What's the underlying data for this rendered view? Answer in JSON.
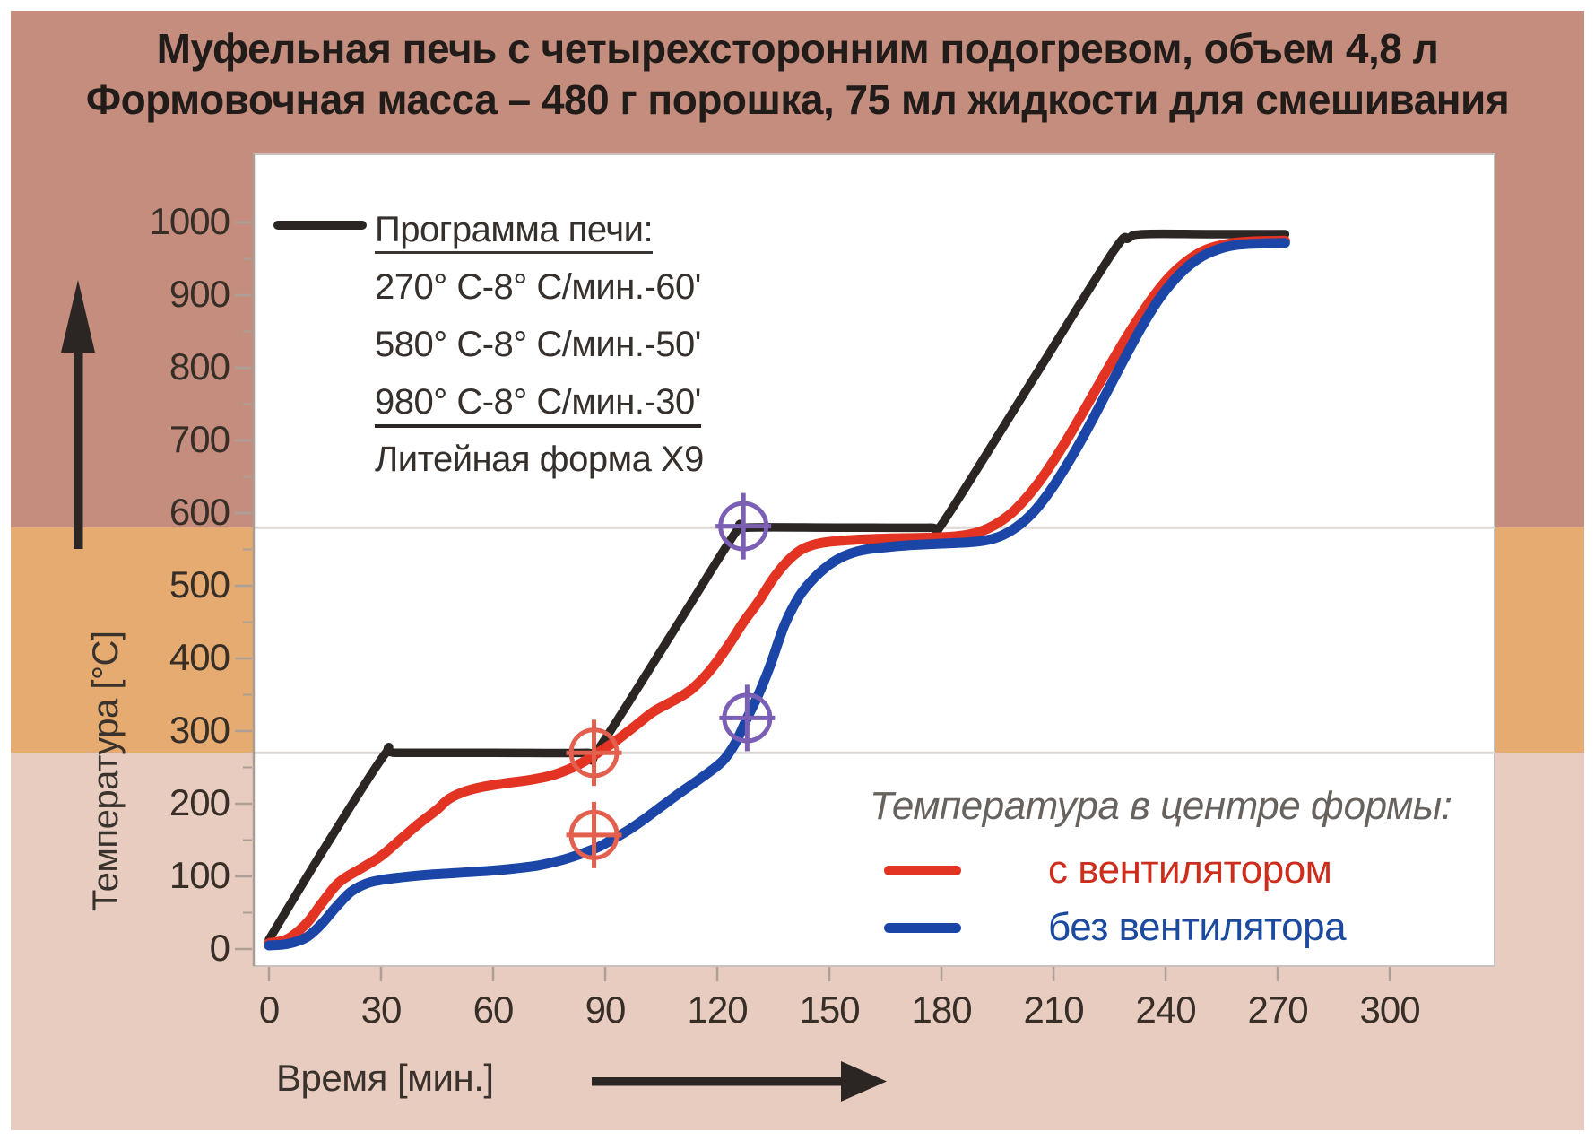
{
  "title": {
    "line1": "Муфельная печь с четырехсторонним подогревом, объем 4,8 л",
    "line2": "Формовочная масса – 480 г порошка, 75 мл жидкости для смешивания"
  },
  "legend_program": {
    "title": "Программа печи:",
    "steps": [
      "270° C-8° C/мин.-60'",
      "580° C-8° C/мин.-50'",
      "980° C-8° C/мин.-30'"
    ],
    "footer": "Литейная форма X9"
  },
  "legend_center": {
    "title": "Температура в центре формы:",
    "items": [
      {
        "label": "с вентилятором",
        "color": "#cd2d1c",
        "swatch": "#e23323"
      },
      {
        "label": "без вентилятора",
        "color": "#1c4a9e",
        "swatch": "#1b46a8"
      }
    ]
  },
  "x_axis": {
    "label": "Время [мин.]"
  },
  "y_axis": {
    "label": "Температура [°C]"
  },
  "colors": {
    "band_top": "#c48d7d",
    "band_middle": "#e5ab70",
    "band_bottom": "#e8ccbf",
    "plot_background": "#ffffff",
    "gridline": "#dbd8d5",
    "tick": "#ab9f97",
    "frame": "#c9c2bc",
    "marker_red": "#e4604e",
    "marker_purple": "#7a5fb5",
    "arrow": "#2b2523"
  },
  "chart_data": {
    "type": "line",
    "title": "Муфельная печь с четырехсторонним подогревом, объем 4,8 л — Формовочная масса – 480 г порошка, 75 мл жидкости для смешивания",
    "xlabel": "Время [мин.]",
    "ylabel": "Температура [°C]",
    "xlim": [
      0,
      328
    ],
    "ylim": [
      0,
      1095
    ],
    "x_ticks": [
      0,
      30,
      60,
      90,
      120,
      150,
      180,
      210,
      240,
      270,
      300
    ],
    "y_ticks": [
      0,
      100,
      200,
      300,
      400,
      500,
      600,
      700,
      800,
      900,
      1000
    ],
    "y_minor_tick_step": 50,
    "gridlines_y": [
      270,
      580
    ],
    "legend_position": "inside top-left / inside bottom-right",
    "bands_y": [
      {
        "range": [
          580,
          1095
        ],
        "color": "#c48d7d"
      },
      {
        "range": [
          270,
          580
        ],
        "color": "#e5ab70"
      },
      {
        "range": [
          0,
          270
        ],
        "color": "#e8ccbf"
      }
    ],
    "series": [
      {
        "name": "Программа печи",
        "color": "#2b2523",
        "width": 9.5,
        "points": [
          [
            0,
            13
          ],
          [
            15,
            140
          ],
          [
            31,
            268
          ],
          [
            34,
            270
          ],
          [
            60,
            270
          ],
          [
            85,
            270
          ],
          [
            88,
            274
          ],
          [
            110,
            452
          ],
          [
            125,
            574
          ],
          [
            128,
            580
          ],
          [
            152,
            580
          ],
          [
            177,
            580
          ],
          [
            180,
            584
          ],
          [
            204,
            780
          ],
          [
            226,
            960
          ],
          [
            230,
            978
          ],
          [
            234,
            984
          ],
          [
            252,
            984
          ],
          [
            272,
            984
          ]
        ]
      },
      {
        "name": "с вентилятором",
        "color": "#e23323",
        "width": 11,
        "points": [
          [
            0,
            8
          ],
          [
            5,
            14
          ],
          [
            10,
            35
          ],
          [
            14,
            62
          ],
          [
            18,
            88
          ],
          [
            21,
            100
          ],
          [
            25,
            112
          ],
          [
            30,
            128
          ],
          [
            35,
            150
          ],
          [
            40,
            172
          ],
          [
            45,
            192
          ],
          [
            48,
            206
          ],
          [
            52,
            216
          ],
          [
            57,
            223
          ],
          [
            63,
            228
          ],
          [
            69,
            232
          ],
          [
            75,
            238
          ],
          [
            80,
            247
          ],
          [
            84,
            257
          ],
          [
            88,
            270
          ],
          [
            93,
            287
          ],
          [
            98,
            307
          ],
          [
            103,
            327
          ],
          [
            108,
            341
          ],
          [
            113,
            357
          ],
          [
            118,
            383
          ],
          [
            123,
            418
          ],
          [
            127,
            450
          ],
          [
            131,
            478
          ],
          [
            135,
            510
          ],
          [
            139,
            535
          ],
          [
            143,
            551
          ],
          [
            148,
            559
          ],
          [
            156,
            563
          ],
          [
            166,
            565
          ],
          [
            176,
            566
          ],
          [
            184,
            568
          ],
          [
            190,
            574
          ],
          [
            195,
            586
          ],
          [
            200,
            606
          ],
          [
            206,
            642
          ],
          [
            212,
            688
          ],
          [
            218,
            740
          ],
          [
            224,
            794
          ],
          [
            230,
            846
          ],
          [
            236,
            893
          ],
          [
            241,
            925
          ],
          [
            246,
            948
          ],
          [
            251,
            963
          ],
          [
            257,
            971
          ],
          [
            263,
            974
          ],
          [
            272,
            975
          ]
        ]
      },
      {
        "name": "без вентилятора",
        "color": "#1b46a8",
        "width": 11,
        "points": [
          [
            0,
            5
          ],
          [
            5,
            7
          ],
          [
            10,
            16
          ],
          [
            14,
            34
          ],
          [
            18,
            58
          ],
          [
            22,
            79
          ],
          [
            26,
            90
          ],
          [
            30,
            95
          ],
          [
            36,
            99
          ],
          [
            42,
            102
          ],
          [
            48,
            104
          ],
          [
            54,
            106
          ],
          [
            60,
            108
          ],
          [
            66,
            111
          ],
          [
            72,
            115
          ],
          [
            78,
            122
          ],
          [
            83,
            130
          ],
          [
            88,
            140
          ],
          [
            92,
            151
          ],
          [
            96,
            163
          ],
          [
            100,
            177
          ],
          [
            105,
            196
          ],
          [
            110,
            215
          ],
          [
            115,
            233
          ],
          [
            119,
            248
          ],
          [
            122,
            262
          ],
          [
            125,
            285
          ],
          [
            128,
            318
          ],
          [
            131,
            350
          ],
          [
            134,
            388
          ],
          [
            138,
            446
          ],
          [
            142,
            486
          ],
          [
            146,
            511
          ],
          [
            150,
            529
          ],
          [
            154,
            541
          ],
          [
            159,
            549
          ],
          [
            165,
            553
          ],
          [
            172,
            556
          ],
          [
            180,
            558
          ],
          [
            188,
            560
          ],
          [
            194,
            565
          ],
          [
            199,
            577
          ],
          [
            204,
            598
          ],
          [
            209,
            630
          ],
          [
            214,
            670
          ],
          [
            219,
            715
          ],
          [
            224,
            764
          ],
          [
            229,
            813
          ],
          [
            234,
            860
          ],
          [
            239,
            900
          ],
          [
            244,
            930
          ],
          [
            249,
            951
          ],
          [
            254,
            963
          ],
          [
            259,
            969
          ],
          [
            265,
            971
          ],
          [
            272,
            972
          ]
        ]
      }
    ],
    "markers": [
      {
        "x": 87,
        "y": 270,
        "color": "#e4604e",
        "shape": "circle-cross"
      },
      {
        "x": 87,
        "y": 157,
        "color": "#e4604e",
        "shape": "circle-cross"
      },
      {
        "x": 127,
        "y": 582,
        "color": "#7a5fb5",
        "shape": "circle-cross"
      },
      {
        "x": 128,
        "y": 318,
        "color": "#7a5fb5",
        "shape": "circle-cross"
      }
    ]
  }
}
